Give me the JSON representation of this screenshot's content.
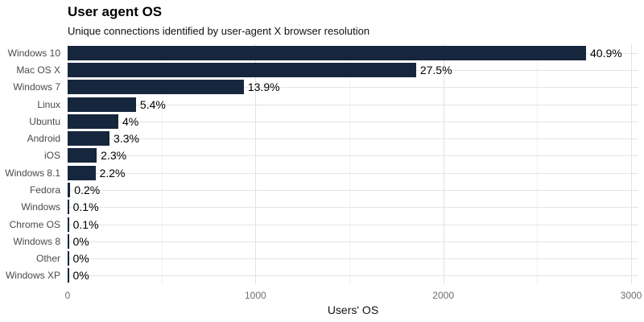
{
  "chart": {
    "title": "User agent OS",
    "subtitle": "Unique connections identified by user-agent X browser resolution",
    "xlabel": "Users' OS"
  },
  "chart_data": {
    "type": "bar",
    "orientation": "horizontal",
    "title": "User agent OS",
    "subtitle": "Unique connections identified by user-agent X browser resolution",
    "xlabel": "Users' OS",
    "categories": [
      "Windows 10",
      "Mac OS X",
      "Windows 7",
      "Linux",
      "Ubuntu",
      "Android",
      "iOS",
      "Windows 8.1",
      "Fedora",
      "Windows",
      "Chrome OS",
      "Windows 8",
      "Other",
      "Windows XP"
    ],
    "values": [
      2760,
      1855,
      938,
      364,
      270,
      223,
      155,
      148,
      14,
      7,
      7,
      2,
      2,
      2
    ],
    "bar_labels": [
      "40.9%",
      "27.5%",
      "13.9%",
      "5.4%",
      "4%",
      "3.3%",
      "2.3%",
      "2.2%",
      "0.2%",
      "0.1%",
      "0.1%",
      "0%",
      "0%",
      "0%"
    ],
    "xlim": [
      0,
      3000
    ],
    "x_major_ticks": [
      0,
      1000,
      2000,
      3000
    ],
    "x_minor_ticks": [
      500,
      1500,
      2500
    ],
    "x_tick_labels": [
      "0",
      "1000",
      "2000",
      "3000"
    ],
    "grid": true,
    "legend": false,
    "bar_color": "#16263d",
    "grid_major_color": "#e2e2e2",
    "grid_minor_color": "#f0f0f0",
    "background_color": "#ffffff"
  }
}
